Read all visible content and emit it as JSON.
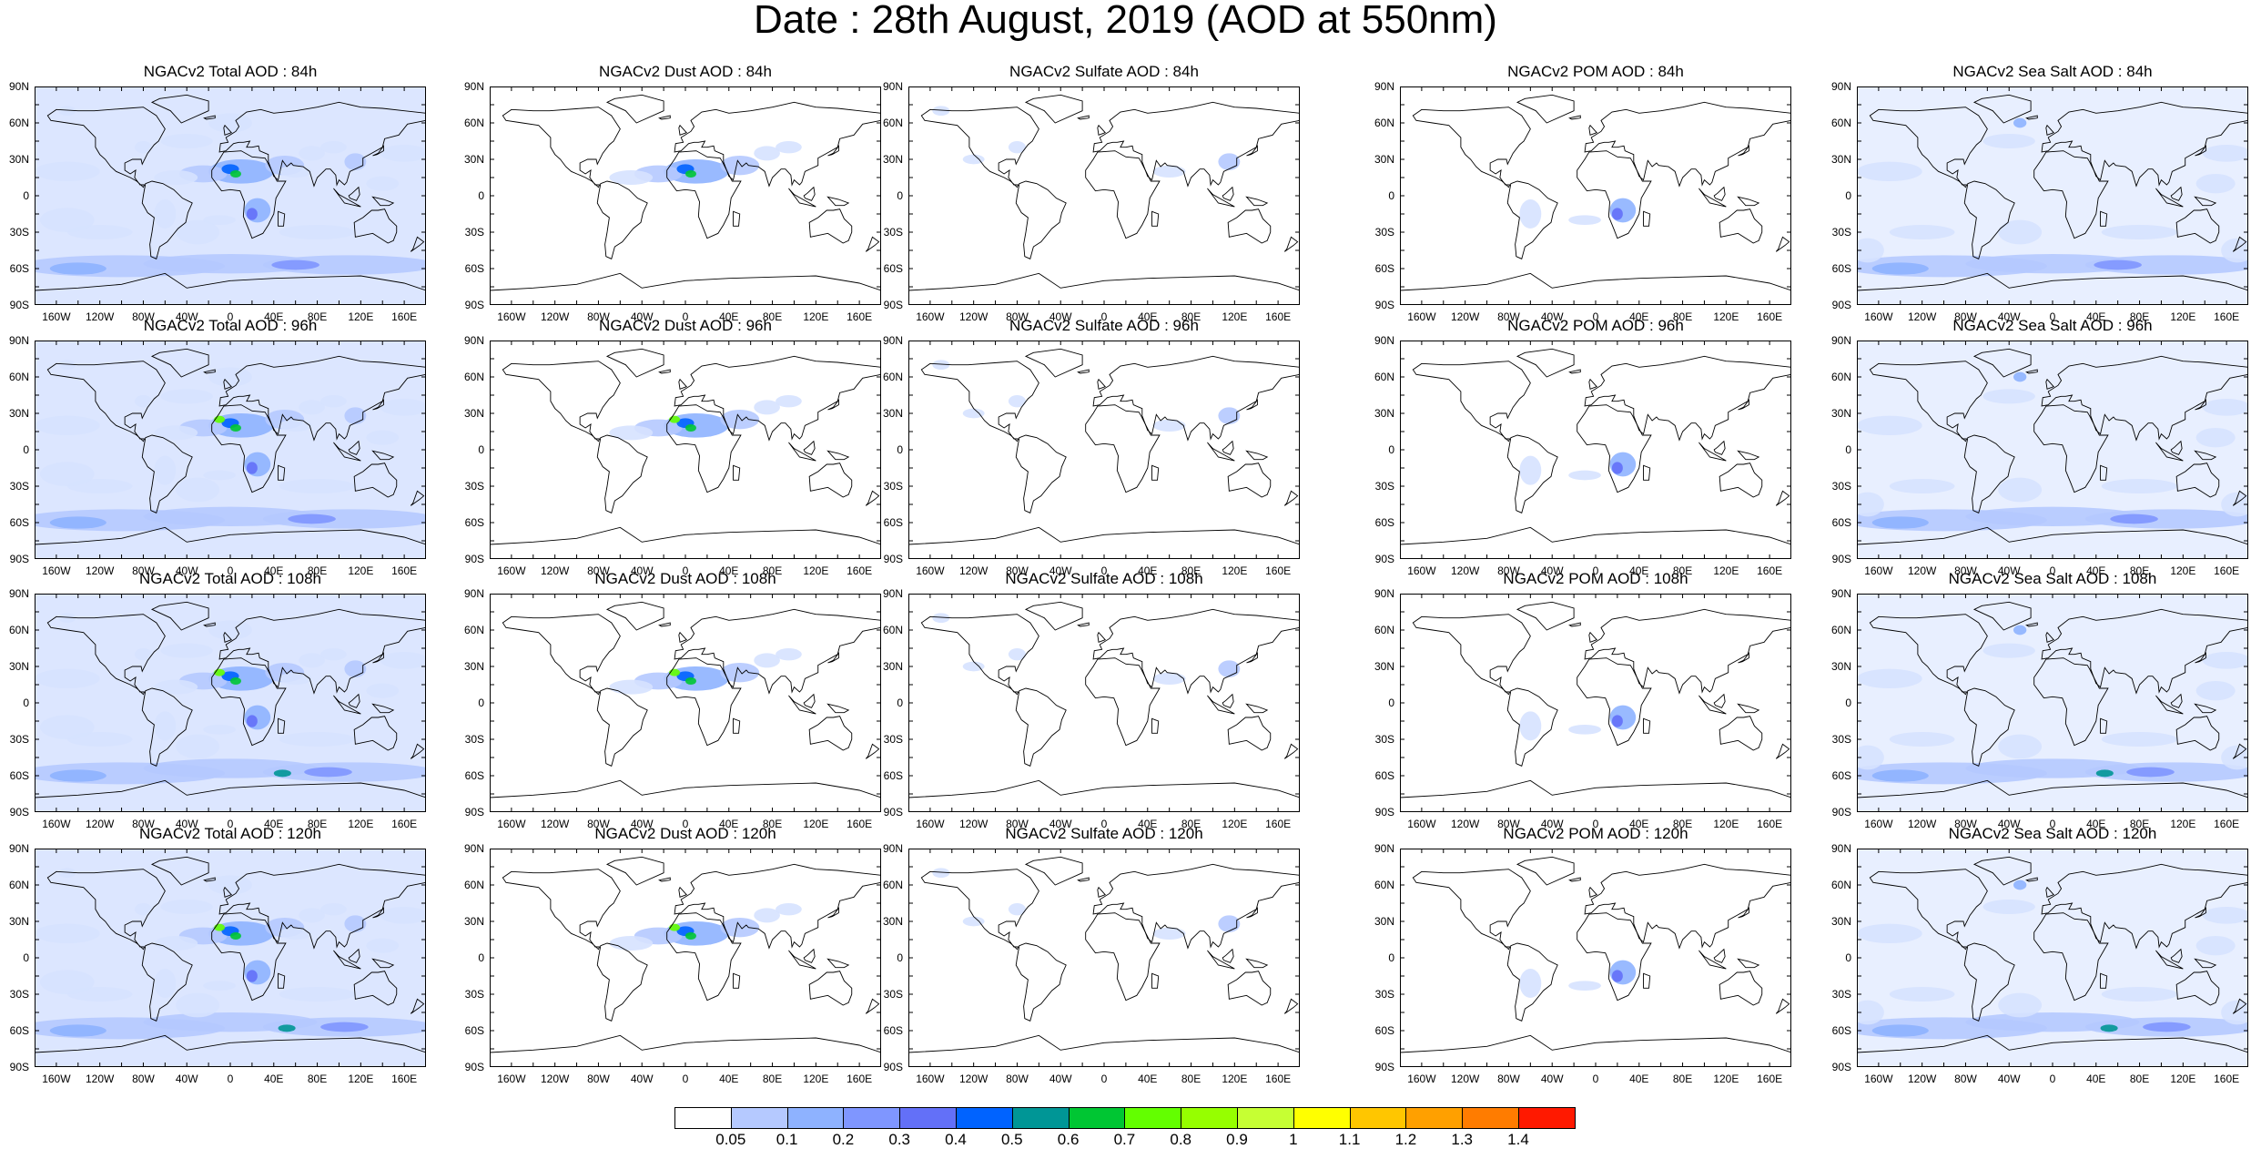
{
  "title": "Date : 28th August, 2019 (AOD at 550nm)",
  "lat_labels": [
    "90N",
    "60N",
    "30N",
    "0",
    "30S",
    "60S",
    "90S"
  ],
  "lon_labels": [
    "160W",
    "120W",
    "80W",
    "40W",
    "0",
    "40E",
    "80E",
    "120E",
    "160E"
  ],
  "panel_types": [
    "total",
    "dust",
    "sulfate",
    "pom",
    "seasalt"
  ],
  "panels": [
    [
      "NGACv2 Total AOD : 84h",
      "NGACv2 Dust AOD : 84h",
      "NGACv2 Sulfate AOD : 84h",
      "NGACv2 POM AOD : 84h",
      "NGACv2 Sea Salt AOD : 84h"
    ],
    [
      "NGACv2 Total AOD : 96h",
      "NGACv2 Dust AOD : 96h",
      "NGACv2 Sulfate AOD : 96h",
      "NGACv2 POM AOD : 96h",
      "NGACv2 Sea Salt AOD : 96h"
    ],
    [
      "NGACv2 Total AOD : 108h",
      "NGACv2 Dust AOD : 108h",
      "NGACv2 Sulfate AOD : 108h",
      "NGACv2 POM AOD : 108h",
      "NGACv2 Sea Salt AOD : 108h"
    ],
    [
      "NGACv2 Total AOD : 120h",
      "NGACv2 Dust AOD : 120h",
      "NGACv2 Sulfate AOD : 120h",
      "NGACv2 POM AOD : 120h",
      "NGACv2 Sea Salt  AOD : 120h"
    ]
  ],
  "colorbar": {
    "labels": [
      "0.05",
      "0.1",
      "0.2",
      "0.3",
      "0.4",
      "0.5",
      "0.6",
      "0.7",
      "0.8",
      "0.9",
      "1",
      "1.1",
      "1.2",
      "1.3",
      "1.4"
    ],
    "colors": [
      "#ffffff",
      "#d6e2ff",
      "#b5c9ff",
      "#8eb2ff",
      "#7f96ff",
      "#6370f8",
      "#0063ff",
      "#009696",
      "#00c633",
      "#63ff00",
      "#96ff00",
      "#c6ff33",
      "#ffff00",
      "#ffc600",
      "#ffa000",
      "#ff7c00",
      "#ff1900"
    ]
  }
}
